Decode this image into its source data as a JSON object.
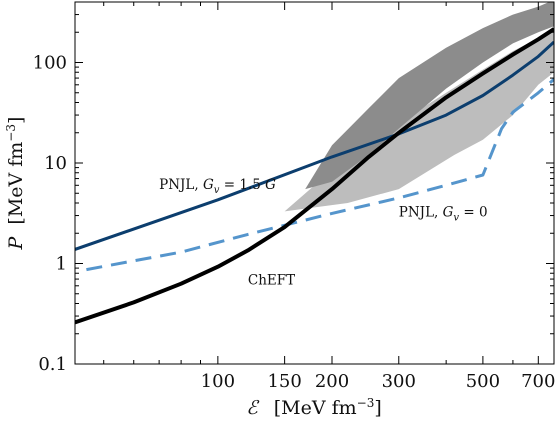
{
  "chart_data": {
    "type": "line",
    "title": "",
    "xlabel": {
      "symbol": "ℰ",
      "unit": "[MeV fm",
      "exp": "−3",
      "close": "]"
    },
    "ylabel": {
      "symbol": "P",
      "unit": "[MeV fm",
      "exp": "−3",
      "close": "]"
    },
    "xscale": "log",
    "yscale": "log",
    "xlim": [
      42,
      770
    ],
    "ylim": [
      0.1,
      400
    ],
    "grid": false,
    "xticks": [
      {
        "value": 100,
        "label": "100"
      },
      {
        "value": 150,
        "label": "150"
      },
      {
        "value": 200,
        "label": "200"
      },
      {
        "value": 300,
        "label": "300"
      },
      {
        "value": 500,
        "label": "500"
      },
      {
        "value": 700,
        "label": "700"
      }
    ],
    "yticks": [
      {
        "value": 0.1,
        "label": "0.1"
      },
      {
        "value": 1,
        "label": "1"
      },
      {
        "value": 10,
        "label": "10"
      },
      {
        "value": 100,
        "label": "100"
      }
    ],
    "bands": [
      {
        "color": "#bdbdbd",
        "upper": [
          [
            150,
            3.3
          ],
          [
            200,
            8.5
          ],
          [
            300,
            25
          ],
          [
            400,
            50
          ],
          [
            500,
            85
          ],
          [
            600,
            130
          ],
          [
            700,
            175
          ],
          [
            770,
            215
          ]
        ],
        "lower": [
          [
            770,
            80
          ],
          [
            700,
            60
          ],
          [
            600,
            30
          ],
          [
            500,
            17
          ],
          [
            420,
            12
          ],
          [
            300,
            5.5
          ],
          [
            220,
            4.0
          ],
          [
            150,
            3.3
          ]
        ]
      },
      {
        "color": "#8c8c8c",
        "upper": [
          [
            170,
            5.5
          ],
          [
            200,
            15
          ],
          [
            250,
            35
          ],
          [
            300,
            70
          ],
          [
            400,
            140
          ],
          [
            500,
            220
          ],
          [
            600,
            300
          ],
          [
            700,
            360
          ],
          [
            770,
            420
          ]
        ],
        "lower": [
          [
            770,
            230
          ],
          [
            700,
            200
          ],
          [
            600,
            155
          ],
          [
            500,
            100
          ],
          [
            400,
            55
          ],
          [
            300,
            22
          ],
          [
            250,
            12
          ],
          [
            200,
            6.5
          ],
          [
            170,
            5.5
          ]
        ]
      }
    ],
    "series": [
      {
        "color": "#0c3e6e",
        "dash": "solid",
        "width": 3,
        "points": [
          [
            42,
            1.38
          ],
          [
            100,
            4.3
          ],
          [
            200,
            11.5
          ],
          [
            300,
            19.5
          ],
          [
            400,
            30
          ],
          [
            500,
            47
          ],
          [
            600,
            75
          ],
          [
            700,
            115
          ],
          [
            770,
            160
          ]
        ]
      },
      {
        "color": "#5595cc",
        "dash": "dashed",
        "width": 3,
        "points": [
          [
            45,
            0.87
          ],
          [
            80,
            1.3
          ],
          [
            120,
            1.95
          ],
          [
            160,
            2.55
          ],
          [
            200,
            3.15
          ],
          [
            300,
            4.5
          ],
          [
            400,
            6.0
          ],
          [
            500,
            7.6
          ],
          [
            560,
            22
          ],
          [
            600,
            32
          ],
          [
            700,
            50
          ],
          [
            770,
            68
          ]
        ]
      },
      {
        "color": "#000000",
        "dash": "solid",
        "width": 4,
        "points": [
          [
            42,
            0.26
          ],
          [
            60,
            0.41
          ],
          [
            80,
            0.63
          ],
          [
            100,
            0.93
          ],
          [
            120,
            1.35
          ],
          [
            150,
            2.3
          ],
          [
            200,
            5.5
          ],
          [
            250,
            11.5
          ],
          [
            300,
            20
          ],
          [
            400,
            45
          ],
          [
            500,
            78
          ],
          [
            600,
            120
          ],
          [
            700,
            170
          ],
          [
            770,
            215
          ]
        ]
      }
    ],
    "annotations": [
      {
        "id": "pnjl-15",
        "text": "PNJL, ",
        "sym": "G",
        "sub": "v",
        "rest": " = 1.5 ",
        "sym2": "G",
        "x": 70,
        "y": 5.5
      },
      {
        "id": "pnjl-0",
        "text": "PNJL, ",
        "sym": "G",
        "sub": "v",
        "rest": " = 0",
        "x": 300,
        "y": 2.95
      },
      {
        "id": "cheft",
        "text": "ChEFT",
        "x": 120,
        "y": 0.62
      }
    ]
  }
}
